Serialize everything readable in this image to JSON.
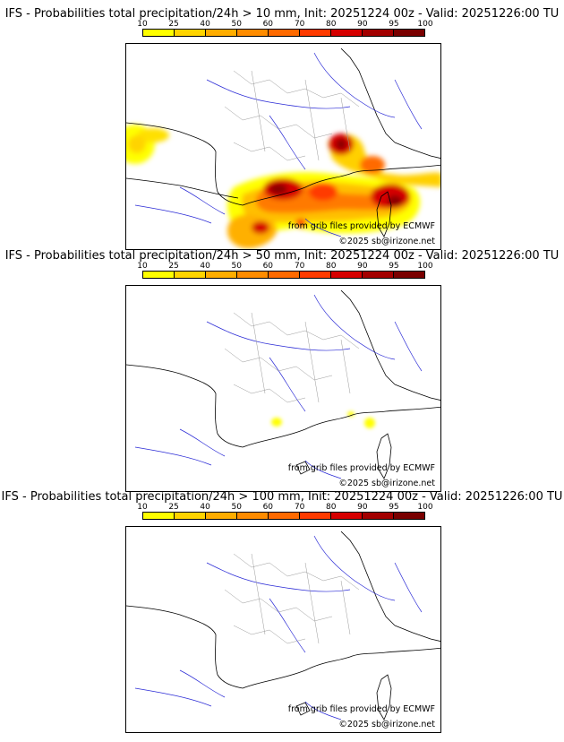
{
  "colorbar": {
    "ticks": [
      "10",
      "25",
      "40",
      "50",
      "60",
      "70",
      "80",
      "90",
      "95",
      "100"
    ],
    "colors": [
      "#ffff00",
      "#ffd400",
      "#ffad00",
      "#ff8c00",
      "#ff6a00",
      "#ff3b00",
      "#d60000",
      "#a30000",
      "#7a0000"
    ]
  },
  "credits": {
    "source": "from grib files provided by ECMWF",
    "copyright": "©2025 sb@irizone.net"
  },
  "panels": [
    {
      "title": "IFS - Probabilities total precipitation/24h > 10 mm, Init: 20251224 00z - Valid: 20251226:00 TU",
      "threshold_mm": 10
    },
    {
      "title": "IFS - Probabilities total precipitation/24h > 50 mm, Init: 20251224 00z - Valid: 20251226:00 TU",
      "threshold_mm": 50
    },
    {
      "title": "IFS - Probabilities total precipitation/24h > 100 mm, Init: 20251224 00z - Valid: 20251226:00 TU",
      "threshold_mm": 100
    }
  ]
}
